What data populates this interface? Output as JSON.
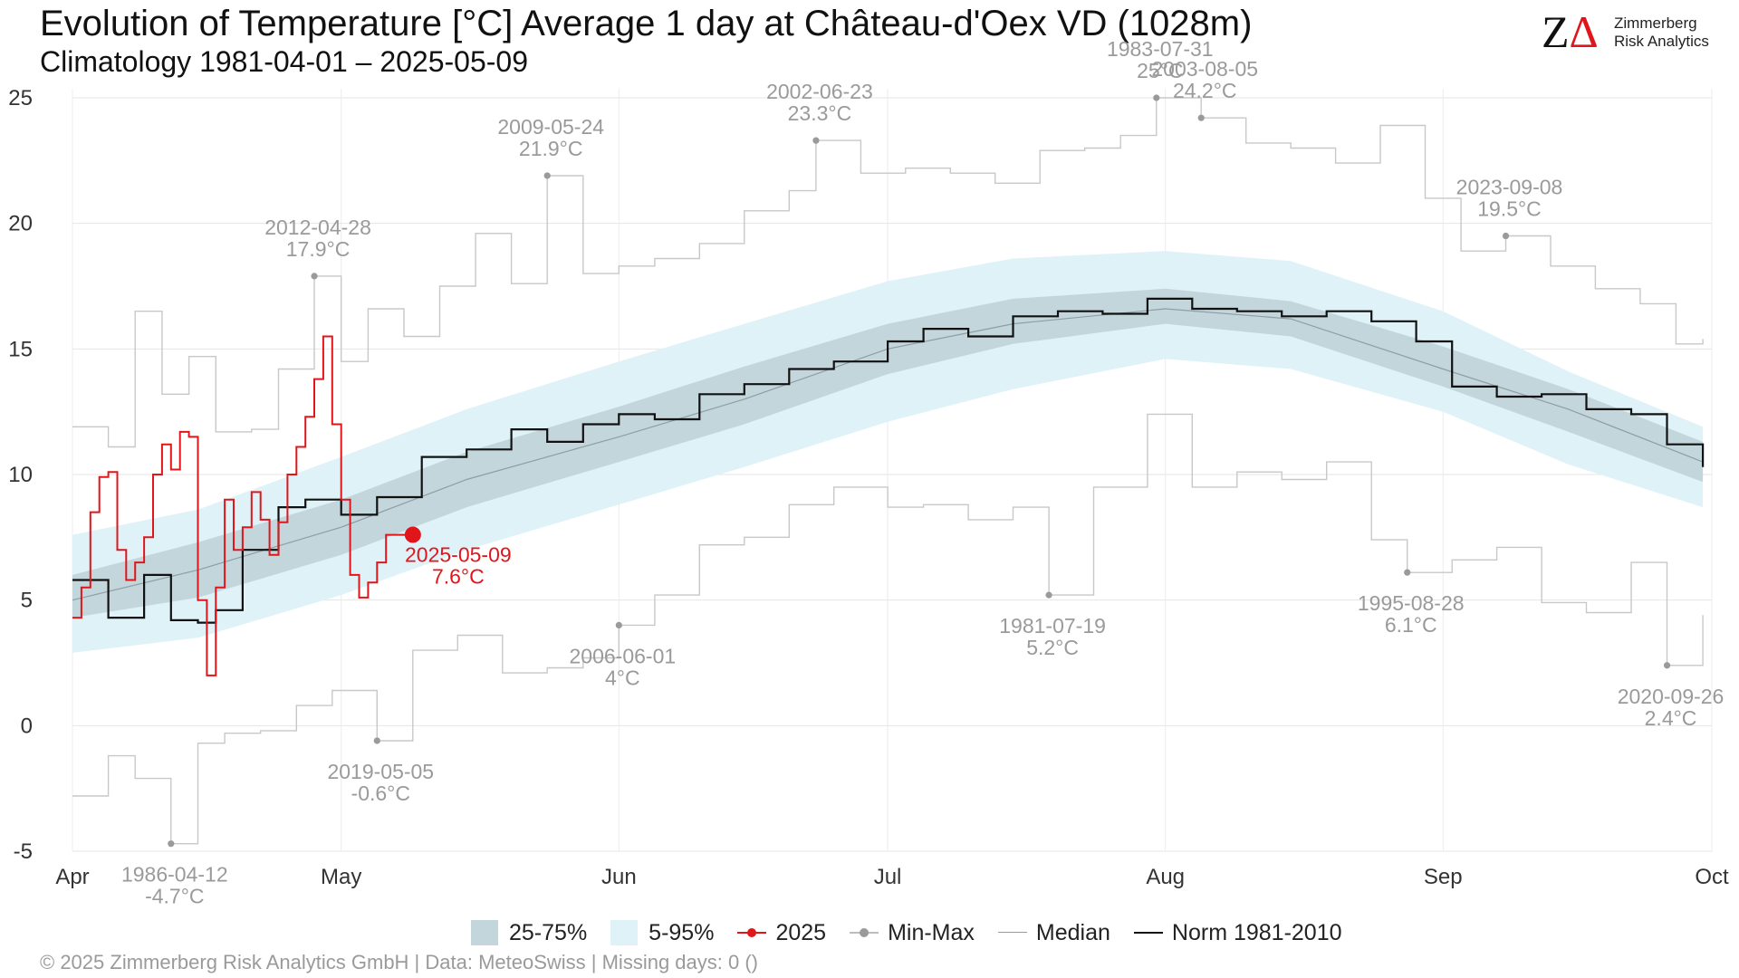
{
  "header": {
    "title": "Evolution of Temperature [°C] Average 1 day at Château-d'Oex  VD (1028m)",
    "subtitle": "Climatology 1981-04-01 – 2025-05-09"
  },
  "logo": {
    "mark_z": "Z",
    "mark_a": "Δ",
    "line1": "Zimmerberg",
    "line2": "Risk Analytics"
  },
  "footer": {
    "text": "©  2025 Zimmerberg Risk Analytics GmbH | Data: MeteoSwiss | Missing days: 0 ()"
  },
  "legend": {
    "iqr": "25-75%",
    "p90": "5-95%",
    "current": "2025",
    "minmax": "Min-Max",
    "median": "Median",
    "norm": "Norm 1981-2010"
  },
  "colors": {
    "iqr_band": "#c3d6dc",
    "p90_band": "#dff2f8",
    "current": "#e0161b",
    "minmax": "#c8c8c8",
    "median": "#8e9ea4",
    "norm": "#111111",
    "annotation": "#9a9a9a"
  },
  "chart_data": {
    "type": "line",
    "x_axis": {
      "type": "date",
      "domain": [
        "2025-04-01",
        "2025-10-01"
      ],
      "ticks": [
        {
          "date": "2025-04-01",
          "label": "Apr"
        },
        {
          "date": "2025-05-01",
          "label": "May"
        },
        {
          "date": "2025-06-01",
          "label": "Jun"
        },
        {
          "date": "2025-07-01",
          "label": "Jul"
        },
        {
          "date": "2025-08-01",
          "label": "Aug"
        },
        {
          "date": "2025-09-01",
          "label": "Sep"
        },
        {
          "date": "2025-10-01",
          "label": "Oct"
        }
      ]
    },
    "y_axis": {
      "ylim": [
        -5,
        25
      ],
      "ticks": [
        -5,
        0,
        5,
        10,
        15,
        20,
        25
      ]
    },
    "grid": true,
    "legend_position": "bottom",
    "median": {
      "dates": [
        "2025-04-01",
        "2025-04-15",
        "2025-05-01",
        "2025-05-15",
        "2025-06-01",
        "2025-06-15",
        "2025-07-01",
        "2025-07-15",
        "2025-08-01",
        "2025-08-15",
        "2025-09-01",
        "2025-09-15",
        "2025-09-30"
      ],
      "values": [
        5.0,
        6.2,
        7.9,
        9.8,
        11.5,
        13.0,
        15.0,
        16.0,
        16.6,
        16.2,
        14.2,
        12.6,
        10.5
      ]
    },
    "band_5_95": {
      "dates": [
        "2025-04-01",
        "2025-04-15",
        "2025-05-01",
        "2025-05-15",
        "2025-06-01",
        "2025-06-15",
        "2025-07-01",
        "2025-07-15",
        "2025-08-01",
        "2025-08-15",
        "2025-09-01",
        "2025-09-15",
        "2025-09-30"
      ],
      "low": [
        2.9,
        3.5,
        5.2,
        7.0,
        8.8,
        10.3,
        12.1,
        13.4,
        14.6,
        14.2,
        12.5,
        10.4,
        8.7
      ],
      "high": [
        7.6,
        8.6,
        10.7,
        12.6,
        14.5,
        16.0,
        17.7,
        18.6,
        18.9,
        18.5,
        16.5,
        14.1,
        11.9
      ]
    },
    "band_25_75": {
      "dates": [
        "2025-04-01",
        "2025-04-15",
        "2025-05-01",
        "2025-05-15",
        "2025-06-01",
        "2025-06-15",
        "2025-07-01",
        "2025-07-15",
        "2025-08-01",
        "2025-08-15",
        "2025-09-01",
        "2025-09-15",
        "2025-09-30"
      ],
      "low": [
        4.3,
        5.1,
        6.8,
        8.7,
        10.5,
        12.0,
        14.0,
        15.2,
        16.0,
        15.5,
        13.5,
        11.7,
        9.7
      ],
      "high": [
        6.0,
        7.3,
        9.0,
        10.9,
        12.7,
        14.3,
        16.0,
        17.0,
        17.4,
        16.9,
        15.1,
        13.4,
        11.3
      ]
    },
    "norm_1981_2010": {
      "dates": [
        "2025-04-01",
        "2025-04-05",
        "2025-04-09",
        "2025-04-12",
        "2025-04-15",
        "2025-04-17",
        "2025-04-20",
        "2025-04-24",
        "2025-04-27",
        "2025-05-01",
        "2025-05-05",
        "2025-05-10",
        "2025-05-15",
        "2025-05-20",
        "2025-05-24",
        "2025-05-28",
        "2025-06-01",
        "2025-06-05",
        "2025-06-10",
        "2025-06-15",
        "2025-06-20",
        "2025-06-25",
        "2025-07-01",
        "2025-07-05",
        "2025-07-10",
        "2025-07-15",
        "2025-07-20",
        "2025-07-25",
        "2025-07-30",
        "2025-08-04",
        "2025-08-09",
        "2025-08-14",
        "2025-08-19",
        "2025-08-24",
        "2025-08-29",
        "2025-09-02",
        "2025-09-07",
        "2025-09-12",
        "2025-09-17",
        "2025-09-22",
        "2025-09-26",
        "2025-09-30"
      ],
      "values": [
        5.8,
        4.3,
        6.0,
        4.2,
        4.1,
        4.6,
        7.0,
        8.7,
        9.0,
        8.4,
        9.1,
        10.7,
        11.0,
        11.8,
        11.3,
        12.0,
        12.4,
        12.2,
        13.2,
        13.6,
        14.2,
        14.5,
        15.3,
        15.8,
        15.5,
        16.3,
        16.5,
        16.4,
        17.0,
        16.6,
        16.5,
        16.3,
        16.5,
        16.1,
        15.3,
        13.5,
        13.1,
        13.2,
        12.6,
        12.4,
        11.2,
        10.3
      ]
    },
    "series_2025": {
      "dates": [
        "2025-04-01",
        "2025-04-02",
        "2025-04-03",
        "2025-04-04",
        "2025-04-05",
        "2025-04-06",
        "2025-04-07",
        "2025-04-08",
        "2025-04-09",
        "2025-04-10",
        "2025-04-11",
        "2025-04-12",
        "2025-04-13",
        "2025-04-14",
        "2025-04-15",
        "2025-04-16",
        "2025-04-17",
        "2025-04-18",
        "2025-04-19",
        "2025-04-20",
        "2025-04-21",
        "2025-04-22",
        "2025-04-23",
        "2025-04-24",
        "2025-04-25",
        "2025-04-26",
        "2025-04-27",
        "2025-04-28",
        "2025-04-29",
        "2025-04-30",
        "2025-05-01",
        "2025-05-02",
        "2025-05-03",
        "2025-05-04",
        "2025-05-05",
        "2025-05-06",
        "2025-05-07",
        "2025-05-08",
        "2025-05-09"
      ],
      "values": [
        4.3,
        5.5,
        8.5,
        9.9,
        10.1,
        7.0,
        5.8,
        6.5,
        7.5,
        10.0,
        11.2,
        10.2,
        11.7,
        11.5,
        5.0,
        2.0,
        5.5,
        9.0,
        7.0,
        7.9,
        9.3,
        8.2,
        6.8,
        8.1,
        10.0,
        11.1,
        12.3,
        13.8,
        15.5,
        12.0,
        9.0,
        6.0,
        5.1,
        5.7,
        6.5,
        7.6,
        7.6,
        7.6,
        7.6
      ]
    },
    "current_point": {
      "date": "2025-05-09",
      "value": 7.6,
      "label_date": "2025-05-09",
      "label_value": "7.6°C"
    },
    "max_series": {
      "dates": [
        "2025-04-01",
        "2025-04-05",
        "2025-04-08",
        "2025-04-11",
        "2025-04-14",
        "2025-04-17",
        "2025-04-21",
        "2025-04-24",
        "2025-04-28",
        "2025-05-01",
        "2025-05-04",
        "2025-05-08",
        "2025-05-12",
        "2025-05-16",
        "2025-05-20",
        "2025-05-24",
        "2025-05-28",
        "2025-06-01",
        "2025-06-05",
        "2025-06-10",
        "2025-06-15",
        "2025-06-20",
        "2025-06-23",
        "2025-06-28",
        "2025-07-03",
        "2025-07-08",
        "2025-07-13",
        "2025-07-18",
        "2025-07-23",
        "2025-07-27",
        "2025-07-31",
        "2025-08-05",
        "2025-08-10",
        "2025-08-15",
        "2025-08-20",
        "2025-08-25",
        "2025-08-30",
        "2025-09-03",
        "2025-09-08",
        "2025-09-13",
        "2025-09-18",
        "2025-09-23",
        "2025-09-27",
        "2025-09-30"
      ],
      "values": [
        11.9,
        11.1,
        16.5,
        13.2,
        14.7,
        11.7,
        11.8,
        14.2,
        17.9,
        14.5,
        16.6,
        15.5,
        17.5,
        19.6,
        17.6,
        21.9,
        18.0,
        18.3,
        18.6,
        19.2,
        20.5,
        21.3,
        23.3,
        22.0,
        22.2,
        22.0,
        21.6,
        22.9,
        23.0,
        23.5,
        25.0,
        24.2,
        23.2,
        23.0,
        22.4,
        23.9,
        21.0,
        18.9,
        19.5,
        18.3,
        17.4,
        16.8,
        15.2,
        15.4
      ]
    },
    "min_series": {
      "dates": [
        "2025-04-01",
        "2025-04-05",
        "2025-04-08",
        "2025-04-12",
        "2025-04-15",
        "2025-04-18",
        "2025-04-22",
        "2025-04-26",
        "2025-04-30",
        "2025-05-05",
        "2025-05-09",
        "2025-05-14",
        "2025-05-19",
        "2025-05-24",
        "2025-05-28",
        "2025-06-01",
        "2025-06-05",
        "2025-06-10",
        "2025-06-15",
        "2025-06-20",
        "2025-06-25",
        "2025-07-01",
        "2025-07-05",
        "2025-07-10",
        "2025-07-15",
        "2025-07-19",
        "2025-07-24",
        "2025-07-30",
        "2025-08-04",
        "2025-08-09",
        "2025-08-14",
        "2025-08-19",
        "2025-08-24",
        "2025-08-28",
        "2025-09-02",
        "2025-09-07",
        "2025-09-12",
        "2025-09-17",
        "2025-09-22",
        "2025-09-26",
        "2025-09-30"
      ],
      "values": [
        -2.8,
        -1.2,
        -2.1,
        -4.7,
        -0.7,
        -0.3,
        -0.2,
        0.8,
        1.4,
        -0.6,
        3.0,
        3.6,
        2.1,
        2.3,
        2.7,
        4.0,
        5.2,
        7.2,
        7.5,
        8.8,
        9.5,
        8.7,
        8.8,
        8.2,
        8.7,
        5.2,
        9.5,
        12.4,
        9.5,
        10.1,
        9.8,
        10.5,
        7.4,
        6.1,
        6.6,
        7.1,
        4.9,
        4.5,
        6.5,
        2.4,
        4.4
      ]
    },
    "annotations": [
      {
        "kind": "max",
        "date": "2025-04-28",
        "value": 17.9,
        "label_date": "2012-04-28",
        "label_value": "17.9°C"
      },
      {
        "kind": "max",
        "date": "2025-05-24",
        "value": 21.9,
        "label_date": "2009-05-24",
        "label_value": "21.9°C"
      },
      {
        "kind": "max",
        "date": "2025-06-23",
        "value": 23.3,
        "label_date": "2002-06-23",
        "label_value": "23.3°C"
      },
      {
        "kind": "max",
        "date": "2025-07-31",
        "value": 25.0,
        "label_date": "1983-07-31",
        "label_value": "25°C"
      },
      {
        "kind": "max",
        "date": "2025-08-05",
        "value": 24.2,
        "label_date": "2003-08-05",
        "label_value": "24.2°C"
      },
      {
        "kind": "max",
        "date": "2025-09-08",
        "value": 19.5,
        "label_date": "2023-09-08",
        "label_value": "19.5°C"
      },
      {
        "kind": "min",
        "date": "2025-04-12",
        "value": -4.7,
        "label_date": "1986-04-12",
        "label_value": "-4.7°C"
      },
      {
        "kind": "min",
        "date": "2025-05-05",
        "value": -0.6,
        "label_date": "2019-05-05",
        "label_value": "-0.6°C"
      },
      {
        "kind": "min",
        "date": "2025-06-01",
        "value": 4.0,
        "label_date": "2006-06-01",
        "label_value": "4°C"
      },
      {
        "kind": "min",
        "date": "2025-07-19",
        "value": 5.2,
        "label_date": "1981-07-19",
        "label_value": "5.2°C"
      },
      {
        "kind": "min",
        "date": "2025-08-28",
        "value": 6.1,
        "label_date": "1995-08-28",
        "label_value": "6.1°C"
      },
      {
        "kind": "min",
        "date": "2025-09-26",
        "value": 2.4,
        "label_date": "2020-09-26",
        "label_value": "2.4°C"
      }
    ]
  }
}
